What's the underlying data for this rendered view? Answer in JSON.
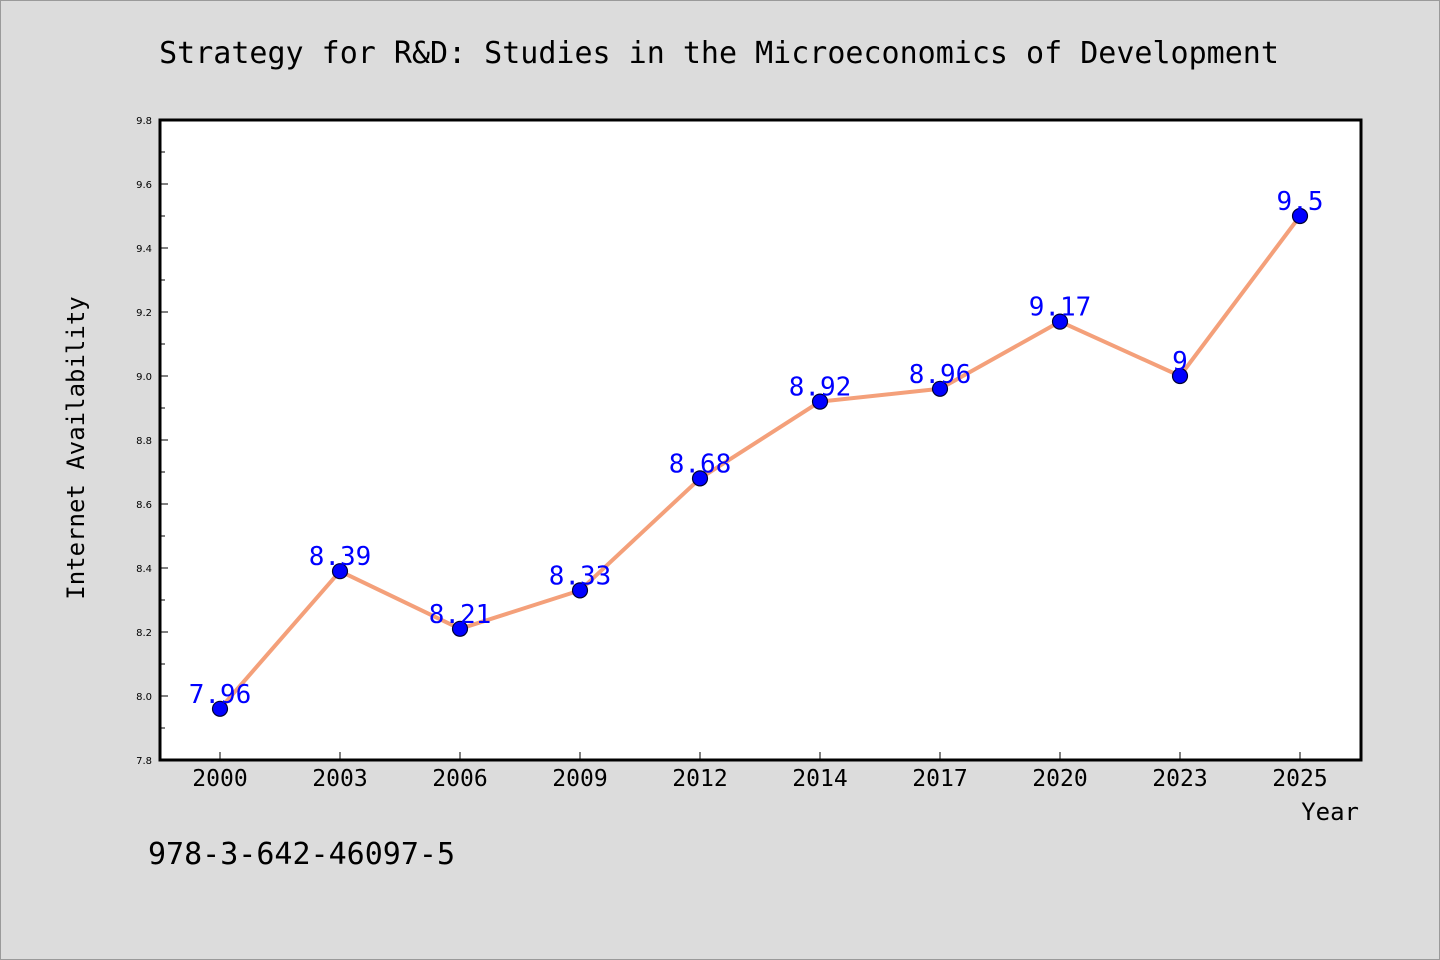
{
  "chart_data": {
    "type": "line",
    "title": "Strategy for R&D: Studies in the Microeconomics of Development",
    "xlabel": "Year",
    "ylabel": "Internet Availability",
    "categories": [
      "2000",
      "2003",
      "2006",
      "2009",
      "2012",
      "2014",
      "2017",
      "2020",
      "2023",
      "2025"
    ],
    "values": [
      7.96,
      8.39,
      8.21,
      8.33,
      8.68,
      8.92,
      8.96,
      9.17,
      9.0,
      9.5
    ],
    "data_labels": [
      "7.96",
      "8.39",
      "8.21",
      "8.33",
      "8.68",
      "8.92",
      "8.96",
      "9.17",
      "9",
      "9.5"
    ],
    "ylim": [
      7.8,
      9.8
    ],
    "yticks": [
      "7.8",
      "8.0",
      "8.2",
      "8.4",
      "8.6",
      "8.8",
      "9.0",
      "9.2",
      "9.4",
      "9.6",
      "9.8"
    ],
    "grid": false,
    "colors": {
      "line": "#f4a07a",
      "marker": "#0000ff",
      "label": "#0000ff"
    }
  },
  "footer": {
    "isbn": "978-3-642-46097-5"
  }
}
